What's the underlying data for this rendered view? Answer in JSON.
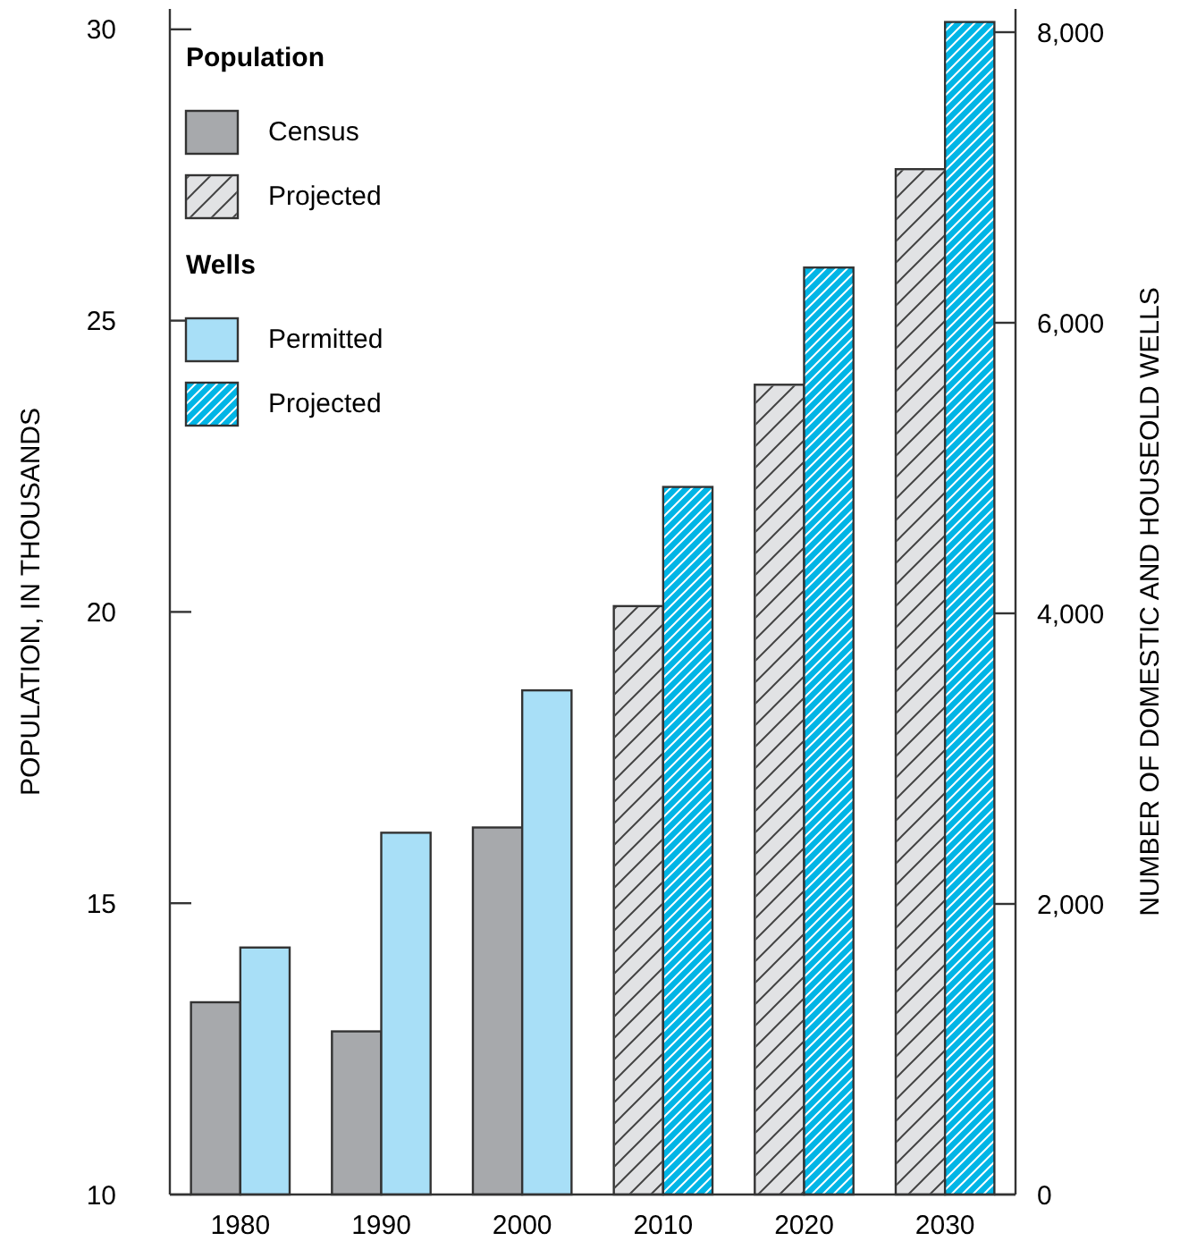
{
  "chart_data": {
    "type": "bar",
    "categories": [
      "1980",
      "1990",
      "2000",
      "2010",
      "2020",
      "2030"
    ],
    "series": [
      {
        "name": "Census",
        "color": "#a7a9ac",
        "values": [
          13.3,
          12.8,
          16.3,
          null,
          null,
          null
        ]
      },
      {
        "name": "Projected",
        "color": "#e1e2e4",
        "values": [
          null,
          null,
          null,
          20.1,
          23.9,
          27.6
        ]
      },
      {
        "name": "Permitted",
        "color": "#a8dff7",
        "axis": "y2",
        "values": [
          1700,
          2490,
          3470,
          null,
          null,
          null
        ]
      },
      {
        "name": "Projected",
        "color": "#00b5e6",
        "axis": "y2",
        "values": [
          null,
          null,
          null,
          4870,
          6380,
          8070
        ]
      }
    ],
    "ylabel": "POPULATION, IN THOUSANDS",
    "y2label": "NUMBER OF DOMESTIC AND HOUSEOLD WELLS",
    "ylim": [
      10,
      30.35
    ],
    "yticks": [
      10,
      15,
      20,
      25,
      30
    ],
    "y2lim": [
      0,
      8160
    ],
    "y2ticks": [
      0,
      {
        "value": 2000,
        "label": "2,000"
      },
      {
        "value": 4000,
        "label": "4,000"
      },
      {
        "value": 6000,
        "label": "6,000"
      },
      {
        "value": 8000,
        "label": "8,000"
      }
    ],
    "legend": "top left",
    "legend_title": "Population",
    "annotations": [
      "Wells"
    ],
    "grid": false
  }
}
